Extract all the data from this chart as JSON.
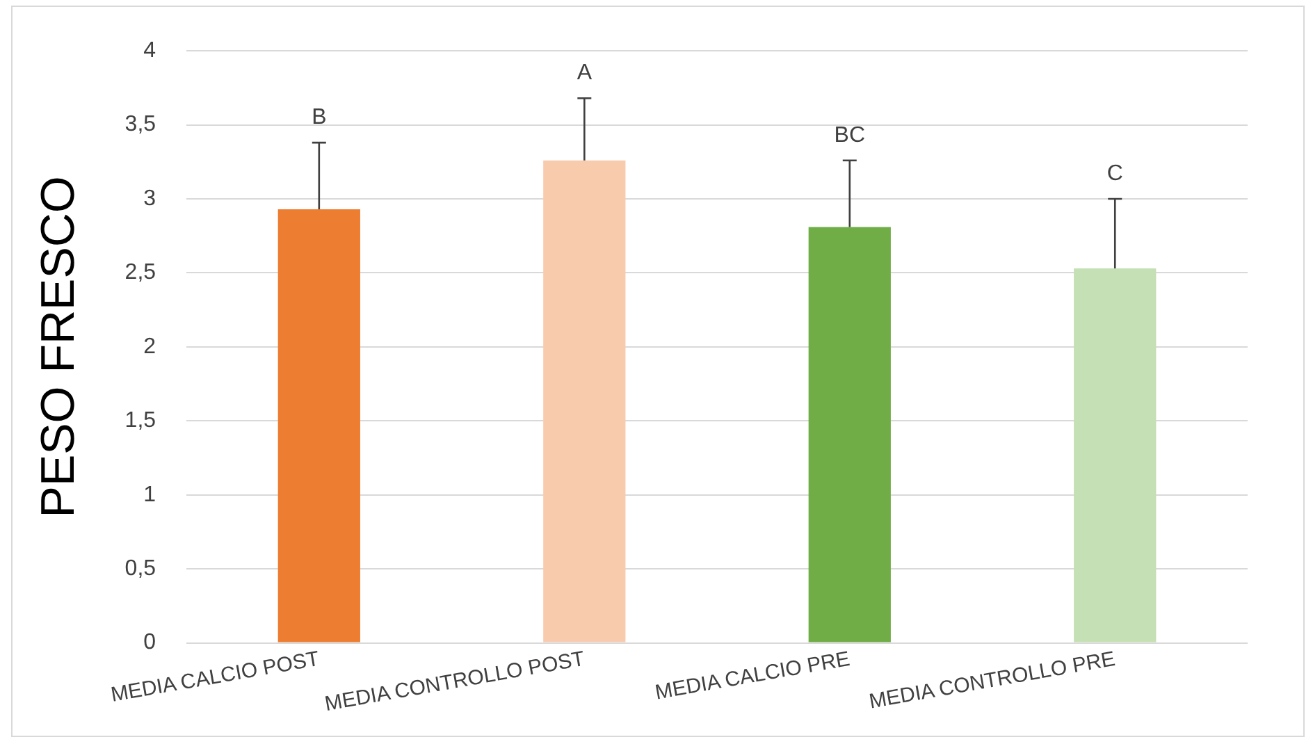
{
  "chart_data": {
    "type": "bar",
    "ylabel": "PESO FRESCO",
    "categories": [
      "MEDIA CALCIO POST",
      "MEDIA CONTROLLO POST",
      "MEDIA CALCIO PRE",
      "MEDIA CONTROLLO PRE"
    ],
    "values": [
      2.93,
      3.26,
      2.81,
      2.53
    ],
    "colors": [
      "#ed7d31",
      "#f8cbad",
      "#70ad47",
      "#c5e0b4"
    ],
    "errors": [
      [
        2.93,
        3.38
      ],
      [
        3.26,
        3.68
      ],
      [
        2.81,
        3.26
      ],
      [
        2.53,
        3.0
      ]
    ],
    "ylim": [
      0,
      4
    ],
    "yticks": [
      {
        "value": 0,
        "label": "0"
      },
      {
        "value": 0.5,
        "label": "0,5"
      },
      {
        "value": 1,
        "label": "1"
      },
      {
        "value": 1.5,
        "label": "1,5"
      },
      {
        "value": 2,
        "label": "2"
      },
      {
        "value": 2.5,
        "label": "2,5"
      },
      {
        "value": 3,
        "label": "3"
      },
      {
        "value": 3.5,
        "label": "3,5"
      },
      {
        "value": 4,
        "label": "4"
      }
    ],
    "grid": "y",
    "legend": false,
    "annotations": [
      "B",
      "A",
      "BC",
      "C"
    ]
  }
}
